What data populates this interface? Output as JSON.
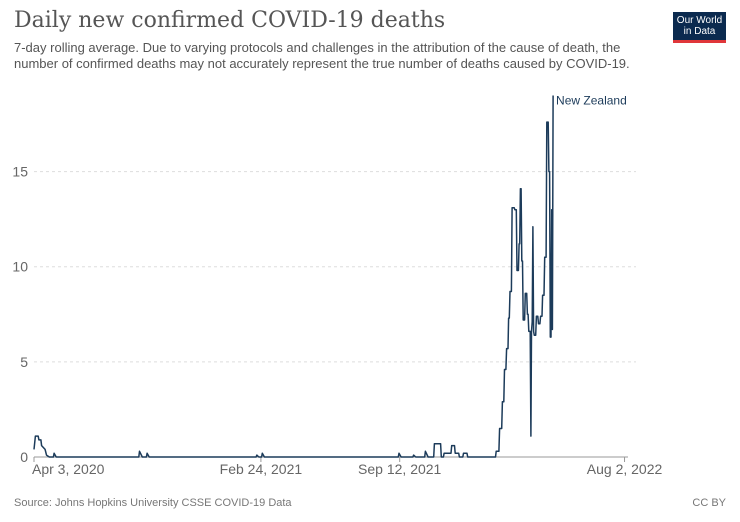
{
  "title": "Daily new confirmed COVID-19 deaths",
  "subtitle": "7-day rolling average. Due to varying protocols and challenges in the attribution of the cause of death, the number of confirmed deaths may not accurately represent the true number of deaths caused by COVID-19.",
  "logo": {
    "line1": "Our World",
    "line2": "in Data",
    "bg": "#0b2a4f",
    "accent": "#e0363a"
  },
  "source": "Source: Johns Hopkins University CSSE COVID-19 Data",
  "license": "CC BY",
  "chart_data": {
    "type": "line",
    "xlabel": "",
    "ylabel": "",
    "ylim": [
      0,
      19.5
    ],
    "yticks": [
      0,
      5,
      10,
      15
    ],
    "xticks": [
      "Apr 3, 2020",
      "Feb 24, 2021",
      "Sep 12, 2021",
      "Aug 2, 2022"
    ],
    "xtick_days": [
      0,
      327,
      527,
      851
    ],
    "x_start": "Apr 3, 2020",
    "x_end": "Aug 7, 2022",
    "grid": "horizontal-dashed",
    "line_color": "#1c3b5a",
    "series": [
      {
        "name": "New Zealand",
        "points": [
          [
            "2020-04-03",
            0.4
          ],
          [
            "2020-04-05",
            1.1
          ],
          [
            "2020-04-09",
            1.1
          ],
          [
            "2020-04-10",
            0.9
          ],
          [
            "2020-04-13",
            0.9
          ],
          [
            "2020-04-14",
            0.6
          ],
          [
            "2020-04-19",
            0.4
          ],
          [
            "2020-04-21",
            0.1
          ],
          [
            "2020-04-25",
            0.0
          ],
          [
            "2020-05-01",
            0.0
          ],
          [
            "2020-05-02",
            0.2
          ],
          [
            "2020-05-05",
            0.0
          ],
          [
            "2020-09-01",
            0.0
          ],
          [
            "2020-09-02",
            0.3
          ],
          [
            "2020-09-06",
            0.0
          ],
          [
            "2020-09-12",
            0.0
          ],
          [
            "2020-09-13",
            0.2
          ],
          [
            "2020-09-16",
            0.0
          ],
          [
            "2021-02-17",
            0.0
          ],
          [
            "2021-02-18",
            0.1
          ],
          [
            "2021-02-21",
            0.0
          ],
          [
            "2021-02-25",
            0.0
          ],
          [
            "2021-02-26",
            0.2
          ],
          [
            "2021-03-01",
            0.0
          ],
          [
            "2021-09-10",
            0.0
          ],
          [
            "2021-09-11",
            0.2
          ],
          [
            "2021-09-14",
            0.0
          ],
          [
            "2021-10-01",
            0.0
          ],
          [
            "2021-10-02",
            0.1
          ],
          [
            "2021-10-05",
            0.0
          ],
          [
            "2021-10-18",
            0.0
          ],
          [
            "2021-10-19",
            0.3
          ],
          [
            "2021-10-23",
            0.0
          ],
          [
            "2021-10-31",
            0.0
          ],
          [
            "2021-11-01",
            0.7
          ],
          [
            "2021-11-10",
            0.7
          ],
          [
            "2021-11-11",
            0.0
          ],
          [
            "2021-11-14",
            0.0
          ],
          [
            "2021-11-15",
            0.2
          ],
          [
            "2021-11-25",
            0.2
          ],
          [
            "2021-11-26",
            0.6
          ],
          [
            "2021-11-30",
            0.6
          ],
          [
            "2021-12-01",
            0.2
          ],
          [
            "2021-12-06",
            0.2
          ],
          [
            "2021-12-07",
            0.0
          ],
          [
            "2021-12-12",
            0.0
          ],
          [
            "2021-12-13",
            0.2
          ],
          [
            "2021-12-18",
            0.2
          ],
          [
            "2021-12-19",
            0.0
          ],
          [
            "2022-01-28",
            0.0
          ],
          [
            "2022-01-29",
            0.3
          ],
          [
            "2022-02-02",
            0.3
          ],
          [
            "2022-02-03",
            1.5
          ],
          [
            "2022-02-06",
            1.5
          ],
          [
            "2022-02-07",
            2.9
          ],
          [
            "2022-02-09",
            2.9
          ],
          [
            "2022-02-10",
            4.6
          ],
          [
            "2022-02-12",
            4.6
          ],
          [
            "2022-02-13",
            5.7
          ],
          [
            "2022-02-15",
            5.7
          ],
          [
            "2022-02-16",
            7.3
          ],
          [
            "2022-02-17",
            7.3
          ],
          [
            "2022-02-18",
            8.7
          ],
          [
            "2022-02-20",
            8.7
          ],
          [
            "2022-02-21",
            13.1
          ],
          [
            "2022-02-24",
            13.1
          ],
          [
            "2022-02-25",
            13.0
          ],
          [
            "2022-02-27",
            13.0
          ],
          [
            "2022-02-28",
            9.8
          ],
          [
            "2022-03-02",
            9.8
          ],
          [
            "2022-03-03",
            11.2
          ],
          [
            "2022-03-04",
            11.2
          ],
          [
            "2022-03-05",
            14.1
          ],
          [
            "2022-03-06",
            14.1
          ],
          [
            "2022-03-07",
            10.3
          ],
          [
            "2022-03-08",
            10.3
          ],
          [
            "2022-03-09",
            7.2
          ],
          [
            "2022-03-11",
            7.2
          ],
          [
            "2022-03-12",
            8.6
          ],
          [
            "2022-03-14",
            8.6
          ],
          [
            "2022-03-15",
            7.5
          ],
          [
            "2022-03-16",
            7.5
          ],
          [
            "2022-03-17",
            6.6
          ],
          [
            "2022-03-19",
            6.6
          ],
          [
            "2022-03-20",
            1.1
          ],
          [
            "2022-03-21",
            6.6
          ],
          [
            "2022-03-22",
            7.1
          ],
          [
            "2022-03-23",
            12.1
          ],
          [
            "2022-03-24",
            6.6
          ],
          [
            "2022-03-25",
            6.4
          ],
          [
            "2022-03-27",
            6.4
          ],
          [
            "2022-03-28",
            7.4
          ],
          [
            "2022-03-30",
            7.4
          ],
          [
            "2022-03-31",
            7.0
          ],
          [
            "2022-04-02",
            7.0
          ],
          [
            "2022-04-03",
            7.4
          ],
          [
            "2022-04-05",
            7.4
          ],
          [
            "2022-04-06",
            8.5
          ],
          [
            "2022-04-08",
            8.5
          ],
          [
            "2022-04-09",
            10.5
          ],
          [
            "2022-04-11",
            10.5
          ],
          [
            "2022-04-12",
            17.6
          ],
          [
            "2022-04-14",
            17.6
          ],
          [
            "2022-04-15",
            15.0
          ],
          [
            "2022-04-16",
            15.0
          ],
          [
            "2022-04-17",
            6.3
          ],
          [
            "2022-04-18",
            6.3
          ],
          [
            "2022-04-19",
            13.0
          ],
          [
            "2022-04-20",
            6.7
          ],
          [
            "2022-04-21",
            19.0
          ]
        ]
      }
    ]
  }
}
